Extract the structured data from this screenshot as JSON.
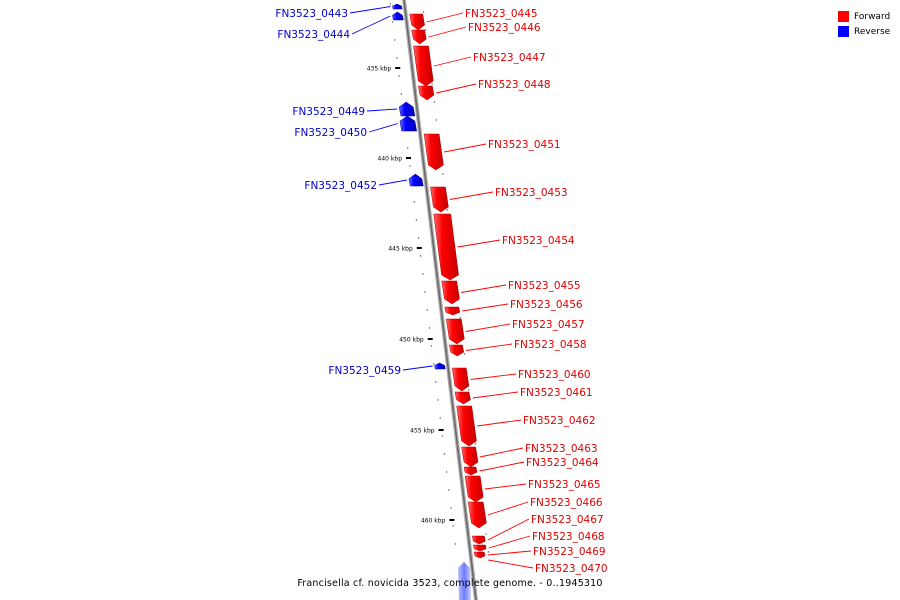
{
  "legend": {
    "forward_label": "Forward",
    "reverse_label": "Reverse",
    "forward_color": "#ff0000",
    "reverse_color": "#0000ff"
  },
  "caption": "Francisella cf. novicida 3523, complete genome. - 0..1945310",
  "scale_labels": [
    "435 kbp",
    "440 kbp",
    "445 kbp",
    "450 kbp",
    "455 kbp",
    "460 kbp"
  ],
  "forward_genes": [
    "FN3523_0445",
    "FN3523_0446",
    "FN3523_0447",
    "FN3523_0448",
    "FN3523_0451",
    "FN3523_0453",
    "FN3523_0454",
    "FN3523_0455",
    "FN3523_0456",
    "FN3523_0457",
    "FN3523_0458",
    "FN3523_0460",
    "FN3523_0461",
    "FN3523_0462",
    "FN3523_0463",
    "FN3523_0464",
    "FN3523_0465",
    "FN3523_0466",
    "FN3523_0467",
    "FN3523_0468",
    "FN3523_0469",
    "FN3523_0470"
  ],
  "reverse_genes": [
    "FN3523_0443",
    "FN3523_0444",
    "FN3523_0449",
    "FN3523_0450",
    "FN3523_0452",
    "FN3523_0459"
  ]
}
